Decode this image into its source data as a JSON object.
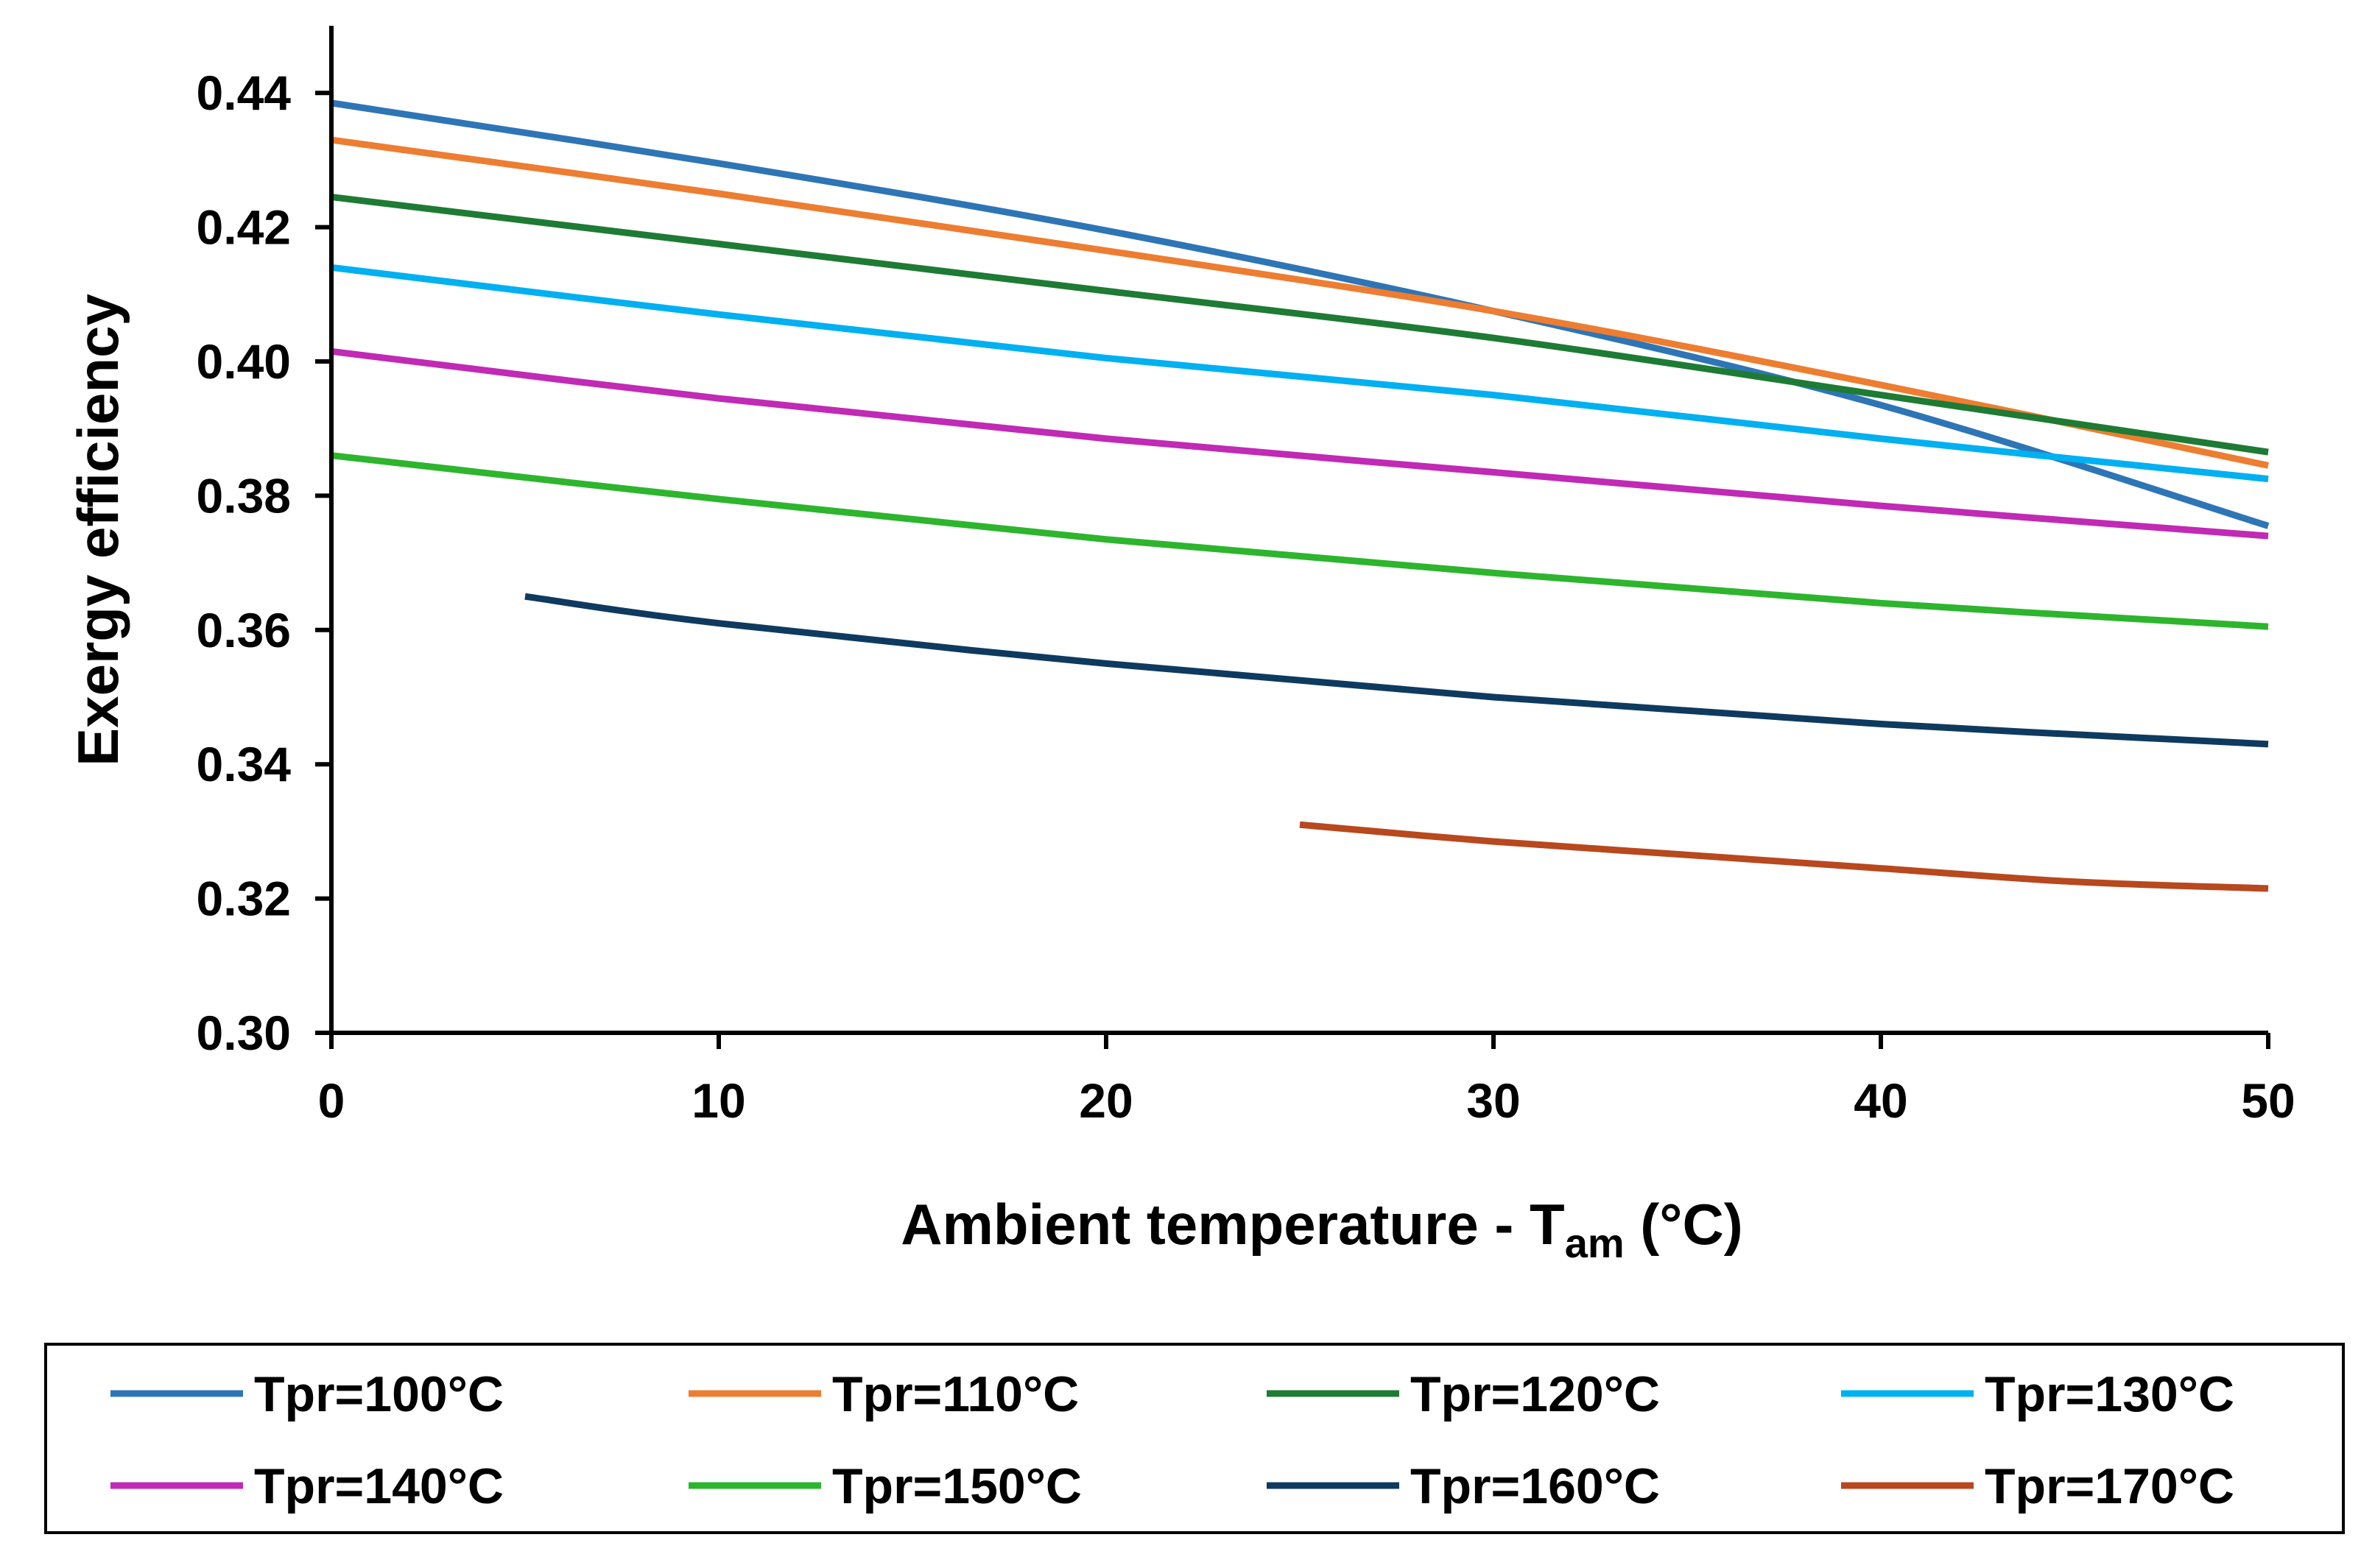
{
  "chart_data": {
    "type": "line",
    "title": "",
    "xlabel": "Ambient temperature - T",
    "xlabel_subscript": "am",
    "xlabel_unit": " (°C)",
    "ylabel": "Exergy efficiency",
    "xlim": [
      0,
      50
    ],
    "ylim": [
      0.3,
      0.45
    ],
    "x_ticks": [
      0,
      10,
      20,
      30,
      40,
      50
    ],
    "x_tick_labels": [
      "0",
      "10",
      "20",
      "30",
      "40",
      "50"
    ],
    "y_ticks": [
      0.3,
      0.32,
      0.34,
      0.36,
      0.38,
      0.4,
      0.42,
      0.44
    ],
    "y_tick_labels": [
      "0.30",
      "0.32",
      "0.34",
      "0.36",
      "0.38",
      "0.40",
      "0.42",
      "0.44"
    ],
    "grid": false,
    "legend_position": "bottom",
    "series": [
      {
        "name": "Tpr=100°C",
        "color": "#2E75B6",
        "x": [
          0,
          10,
          20,
          30,
          40,
          50
        ],
        "y": [
          0.4385,
          0.4295,
          0.4195,
          0.4075,
          0.3935,
          0.3755
        ]
      },
      {
        "name": "Tpr=110°C",
        "color": "#ED7D31",
        "x": [
          0,
          10,
          20,
          30,
          40,
          50
        ],
        "y": [
          0.433,
          0.425,
          0.4165,
          0.4075,
          0.3965,
          0.3845
        ]
      },
      {
        "name": "Tpr=120°C",
        "color": "#1E7B34",
        "x": [
          0,
          10,
          20,
          30,
          40,
          50
        ],
        "y": [
          0.4245,
          0.4175,
          0.4105,
          0.4035,
          0.395,
          0.3865
        ]
      },
      {
        "name": "Tpr=130°C",
        "color": "#00B0F0",
        "x": [
          0,
          10,
          20,
          30,
          40,
          50
        ],
        "y": [
          0.414,
          0.407,
          0.4005,
          0.395,
          0.3885,
          0.3825
        ]
      },
      {
        "name": "Tpr=140°C",
        "color": "#C02AB4",
        "x": [
          0,
          10,
          20,
          30,
          40,
          50
        ],
        "y": [
          0.4015,
          0.3945,
          0.3885,
          0.3835,
          0.3785,
          0.374
        ]
      },
      {
        "name": "Tpr=150°C",
        "color": "#2DB52D",
        "x": [
          0,
          10,
          20,
          30,
          40,
          50
        ],
        "y": [
          0.386,
          0.3795,
          0.3735,
          0.3685,
          0.364,
          0.3605
        ]
      },
      {
        "name": "Tpr=160°C",
        "color": "#0F3A5F",
        "x": [
          5,
          10,
          20,
          30,
          40,
          50
        ],
        "y": [
          0.365,
          0.361,
          0.355,
          0.35,
          0.346,
          0.343
        ]
      },
      {
        "name": "Tpr=170°C",
        "color": "#B8481E",
        "x": [
          25,
          30,
          35,
          40,
          45,
          50
        ],
        "y": [
          0.331,
          0.3285,
          0.3265,
          0.3245,
          0.3225,
          0.3215
        ]
      }
    ]
  }
}
